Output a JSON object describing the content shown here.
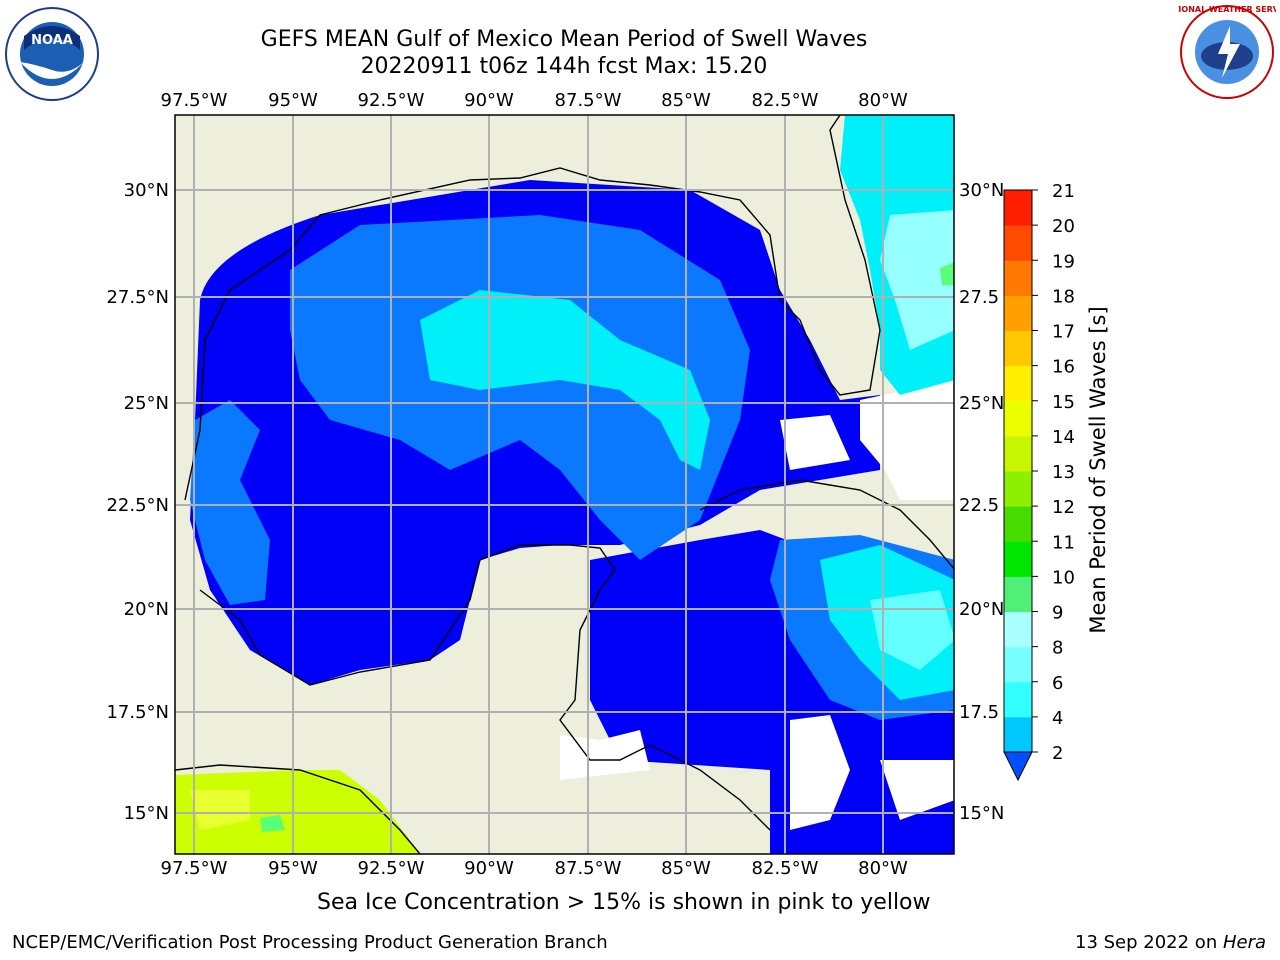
{
  "title_line1": "GEFS MEAN Gulf of Mexico Mean Period of Swell Waves",
  "title_line2": "20220911 t06z 144h fcst   Max: 15.20",
  "note": "Sea Ice Concentration > 15% is shown in pink to yellow",
  "footer_left": "NCEP/EMC/Verification Post Processing Product Generation Branch",
  "footer_date": "13 Sep 2022 on ",
  "footer_host": "Hera",
  "logos": {
    "left": "NOAA",
    "right": "NATIONAL WEATHER SERVICE"
  },
  "map": {
    "lon_ticks": [
      "97.5°W",
      "95°W",
      "92.5°W",
      "90°W",
      "87.5°W",
      "85°W",
      "82.5°W",
      "80°W"
    ],
    "lat_ticks_left": [
      "30°N",
      "27.5°N",
      "25°N",
      "22.5°N",
      "20°N",
      "17.5°N",
      "15°N"
    ],
    "lat_ticks_right": [
      "30°N",
      "27.5",
      "25°N",
      "22.5",
      "20°N",
      "17.5",
      "15°N"
    ],
    "colors": {
      "land": "#eeeedc",
      "deep_blue": "#0000fa",
      "blue": "#0a78ff",
      "cyan": "#00f0fa",
      "light_cyan": "#64ffff",
      "pale_cyan": "#96ffff",
      "green": "#5aff78",
      "yellow_green": "#ccff00"
    }
  },
  "colorbar": {
    "label": "Mean Period of Swell Waves [s]",
    "ticks": [
      "2",
      "4",
      "6",
      "8",
      "9",
      "10",
      "11",
      "12",
      "13",
      "14",
      "15",
      "16",
      "17",
      "18",
      "19",
      "20",
      "21"
    ],
    "colors": [
      "#0050ff",
      "#00c8ff",
      "#32ffff",
      "#78ffff",
      "#aaffff",
      "#50f078",
      "#00e600",
      "#46dc00",
      "#8cf000",
      "#c8f500",
      "#ebff00",
      "#fff000",
      "#ffc800",
      "#ffa000",
      "#ff7800",
      "#ff4b00",
      "#ff1e00",
      "#ff0000"
    ]
  }
}
